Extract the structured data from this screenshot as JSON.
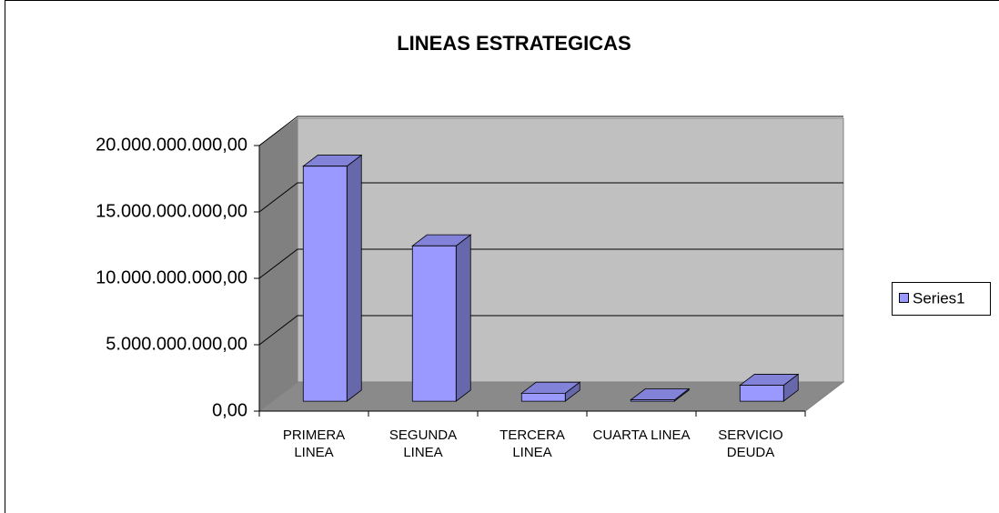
{
  "chart_data": {
    "type": "bar3d",
    "title": "LINEAS ESTRATEGICAS",
    "categories": [
      "PRIMERA LINEA",
      "SEGUNDA LINEA",
      "TERCERA LINEA",
      "CUARTA LINEA",
      "SERVICIO DEUDA"
    ],
    "series": [
      {
        "name": "Series1",
        "color": "#9999ff",
        "values": [
          17700000000,
          11700000000,
          600000000,
          100000000,
          1200000000
        ]
      }
    ],
    "ylim": [
      0,
      20000000000
    ],
    "yticks": [
      {
        "value": 0,
        "label": "0,00"
      },
      {
        "value": 5000000000,
        "label": "5.000.000.000,00"
      },
      {
        "value": 10000000000,
        "label": "10.000.000.000,00"
      },
      {
        "value": 15000000000,
        "label": "15.000.000.000,00"
      },
      {
        "value": 20000000000,
        "label": "20.000.000.000,00"
      }
    ],
    "grid": true,
    "legend": "right"
  }
}
